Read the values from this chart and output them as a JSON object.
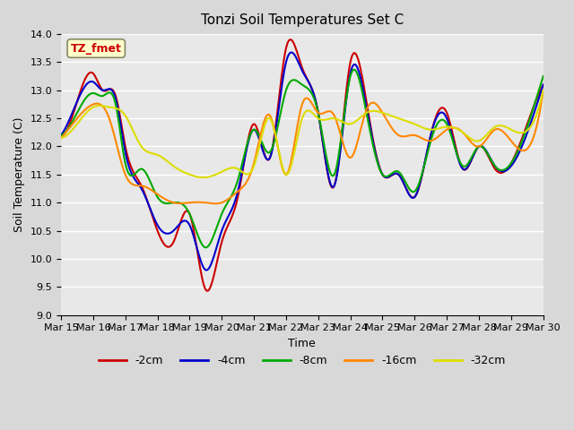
{
  "title": "Tonzi Soil Temperatures Set C",
  "xlabel": "Time",
  "ylabel": "Soil Temperature (C)",
  "ylim": [
    9.0,
    14.0
  ],
  "yticks": [
    9.0,
    9.5,
    10.0,
    10.5,
    11.0,
    11.5,
    12.0,
    12.5,
    13.0,
    13.5,
    14.0
  ],
  "x_labels": [
    "Mar 15",
    "Mar 16",
    "Mar 17",
    "Mar 18",
    "Mar 19",
    "Mar 20",
    "Mar 21",
    "Mar 22",
    "Mar 23",
    "Mar 24",
    "Mar 25",
    "Mar 26",
    "Mar 27",
    "Mar 28",
    "Mar 29",
    "Mar 30"
  ],
  "series": {
    "-2cm": {
      "color": "#cc0000",
      "linewidth": 1.5
    },
    "-4cm": {
      "color": "#0000cc",
      "linewidth": 1.5
    },
    "-8cm": {
      "color": "#00aa00",
      "linewidth": 1.5
    },
    "-16cm": {
      "color": "#ff8800",
      "linewidth": 1.5
    },
    "-32cm": {
      "color": "#dddd00",
      "linewidth": 1.5
    }
  },
  "annotation_text": "TZ_fmet",
  "annotation_color": "#cc0000",
  "annotation_bg": "#ffffcc",
  "annotation_border": "#888866",
  "plot_bg": "#e8e8e8",
  "grid_color": "#ffffff",
  "legend_labels": [
    "-2cm",
    "-4cm",
    "-8cm",
    "-16cm",
    "-32cm"
  ],
  "legend_colors": [
    "#cc0000",
    "#0000cc",
    "#00aa00",
    "#ff8800",
    "#dddd00"
  ],
  "kx_2cm": [
    0,
    0.5,
    1.0,
    1.3,
    1.7,
    2.0,
    2.5,
    3.0,
    3.5,
    4.0,
    4.5,
    5.0,
    5.5,
    6.0,
    6.5,
    7.0,
    7.5,
    8.0,
    8.5,
    9.0,
    9.5,
    10.0,
    10.5,
    11.0,
    11.5,
    12.0,
    12.5,
    13.0,
    13.5,
    14.0,
    15.0
  ],
  "ky_2cm": [
    12.2,
    12.8,
    13.3,
    13.0,
    12.9,
    12.0,
    11.3,
    10.5,
    10.3,
    10.8,
    9.45,
    10.3,
    11.1,
    12.4,
    11.8,
    13.75,
    13.4,
    12.6,
    11.3,
    13.5,
    12.8,
    11.5,
    11.5,
    11.1,
    12.2,
    12.6,
    11.6,
    12.0,
    11.6,
    11.7,
    13.1
  ],
  "kx_4cm": [
    0,
    0.5,
    1.0,
    1.3,
    1.7,
    2.0,
    2.5,
    3.0,
    3.5,
    4.0,
    4.5,
    5.0,
    5.5,
    6.0,
    6.5,
    7.0,
    7.5,
    8.0,
    8.5,
    9.0,
    9.5,
    10.0,
    10.5,
    11.0,
    11.5,
    12.0,
    12.5,
    13.0,
    13.5,
    14.0,
    15.0
  ],
  "ky_4cm": [
    12.2,
    12.8,
    13.15,
    13.0,
    12.85,
    11.9,
    11.25,
    10.6,
    10.5,
    10.6,
    9.8,
    10.5,
    11.2,
    12.3,
    11.8,
    13.5,
    13.35,
    12.6,
    11.3,
    13.3,
    12.7,
    11.5,
    11.5,
    11.1,
    12.2,
    12.5,
    11.6,
    12.0,
    11.65,
    11.65,
    13.1
  ],
  "kx_8cm": [
    0,
    0.5,
    1.0,
    1.3,
    1.7,
    2.0,
    2.5,
    3.0,
    3.5,
    4.0,
    4.5,
    5.0,
    5.5,
    6.0,
    6.5,
    7.0,
    7.5,
    8.0,
    8.5,
    9.0,
    9.5,
    10.0,
    10.5,
    11.0,
    11.5,
    12.0,
    12.5,
    13.0,
    13.5,
    14.0,
    15.0
  ],
  "ky_8cm": [
    12.2,
    12.6,
    12.95,
    12.9,
    12.75,
    11.7,
    11.6,
    11.1,
    11.0,
    10.8,
    10.2,
    10.8,
    11.4,
    12.3,
    11.9,
    13.0,
    13.1,
    12.6,
    11.5,
    13.25,
    12.6,
    11.5,
    11.55,
    11.2,
    12.1,
    12.4,
    11.65,
    12.0,
    11.65,
    11.7,
    13.25
  ],
  "kx_16cm": [
    0,
    0.5,
    1.0,
    1.5,
    2.0,
    2.5,
    3.0,
    3.5,
    4.0,
    4.5,
    5.0,
    5.5,
    6.0,
    6.5,
    7.0,
    7.5,
    8.0,
    8.5,
    9.0,
    9.5,
    10.0,
    10.5,
    11.0,
    11.5,
    12.0,
    12.5,
    13.0,
    13.5,
    14.0,
    15.0
  ],
  "ky_16cm": [
    12.15,
    12.5,
    12.75,
    12.5,
    11.5,
    11.3,
    11.15,
    11.0,
    11.0,
    11.0,
    11.0,
    11.2,
    11.7,
    12.55,
    11.5,
    12.75,
    12.6,
    12.55,
    11.8,
    12.65,
    12.6,
    12.2,
    12.2,
    12.1,
    12.3,
    12.25,
    12.0,
    12.3,
    12.1,
    13.0
  ],
  "kx_32cm": [
    0,
    0.5,
    1.0,
    1.5,
    2.0,
    2.5,
    3.0,
    3.5,
    4.0,
    4.5,
    5.0,
    5.5,
    6.0,
    6.5,
    7.0,
    7.5,
    8.0,
    8.5,
    9.0,
    9.5,
    10.0,
    10.5,
    11.0,
    11.5,
    12.0,
    12.5,
    13.0,
    13.5,
    14.0,
    15.0
  ],
  "ky_32cm": [
    12.15,
    12.4,
    12.7,
    12.7,
    12.55,
    12.0,
    11.85,
    11.65,
    11.5,
    11.45,
    11.55,
    11.6,
    11.65,
    12.5,
    11.5,
    12.5,
    12.5,
    12.5,
    12.4,
    12.6,
    12.6,
    12.5,
    12.4,
    12.3,
    12.35,
    12.25,
    12.1,
    12.35,
    12.3,
    13.0
  ]
}
